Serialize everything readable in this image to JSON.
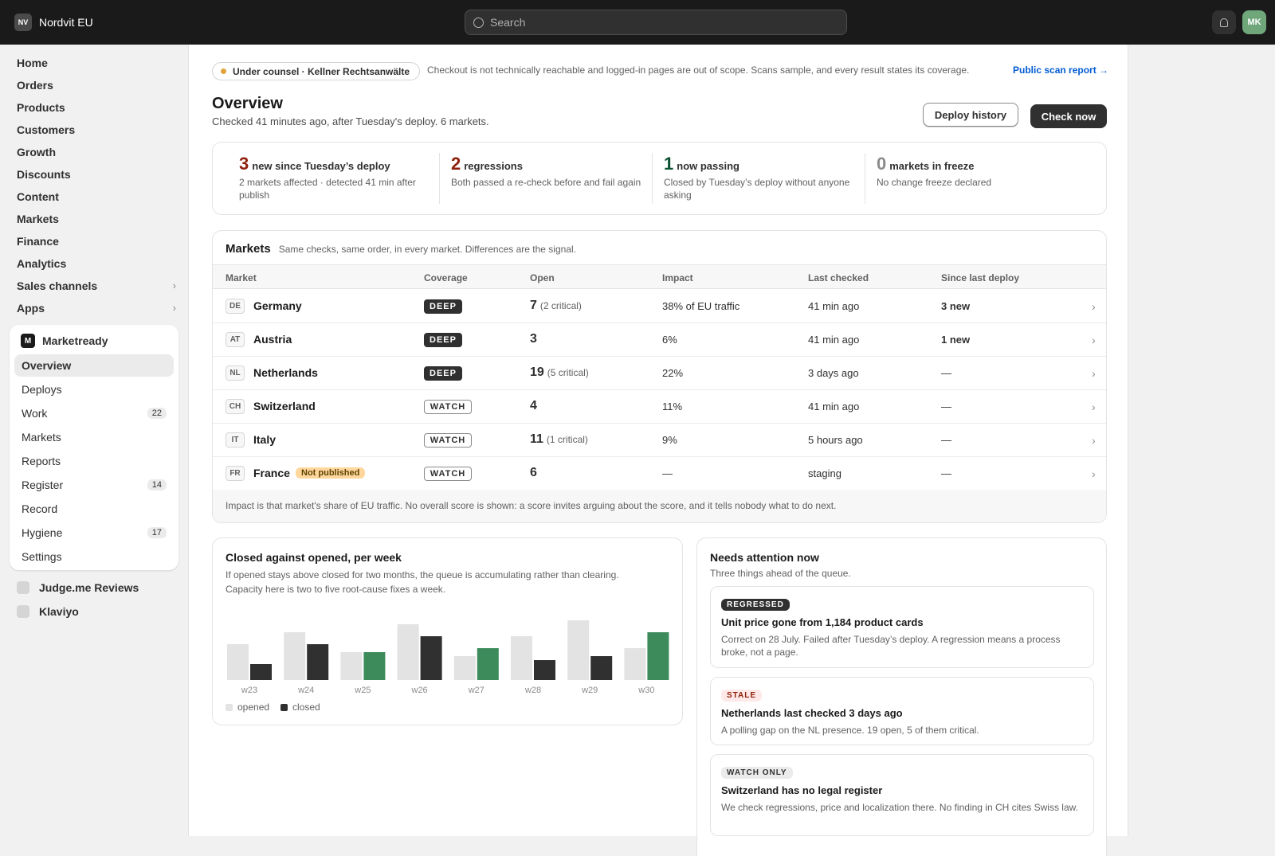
{
  "topbar": {
    "store_badge": "NV",
    "store_name": "Nordvit EU",
    "search_placeholder": "Search",
    "avatar_initials": "MK"
  },
  "sidebar": {
    "items": [
      {
        "label": "Home"
      },
      {
        "label": "Orders"
      },
      {
        "label": "Products"
      },
      {
        "label": "Customers"
      },
      {
        "label": "Growth"
      },
      {
        "label": "Discounts"
      },
      {
        "label": "Content"
      },
      {
        "label": "Markets"
      },
      {
        "label": "Finance"
      },
      {
        "label": "Analytics"
      },
      {
        "label": "Sales channels",
        "chevron": "›"
      },
      {
        "label": "Apps",
        "chevron": "›"
      }
    ],
    "app": {
      "logo": "M",
      "name": "Marketready",
      "items": [
        {
          "label": "Overview",
          "active": true
        },
        {
          "label": "Deploys"
        },
        {
          "label": "Work",
          "count": "22"
        },
        {
          "label": "Markets"
        },
        {
          "label": "Reports"
        },
        {
          "label": "Register",
          "count": "14"
        },
        {
          "label": "Record"
        },
        {
          "label": "Hygiene",
          "count": "17"
        },
        {
          "label": "Settings"
        }
      ]
    },
    "other_apps": [
      {
        "label": "Judge.me Reviews"
      },
      {
        "label": "Klaviyo"
      }
    ]
  },
  "banner": {
    "counsel": "Under counsel · Kellner Rechtsanwälte",
    "scope": "Checkout is not technically reachable and logged-in pages are out of scope. Scans sample, and every result states its coverage.",
    "report_link": "Public scan report →"
  },
  "header": {
    "title": "Overview",
    "subtitle": "Checked 41 minutes ago, after Tuesday's deploy. 6 markets.",
    "deploy_history": "Deploy history",
    "check_now": "Check now"
  },
  "stats": [
    {
      "num": "3",
      "label": "new since Tuesday’s deploy",
      "desc": "2 markets affected · detected 41 min after publish",
      "tone": "red"
    },
    {
      "num": "2",
      "label": "regressions",
      "desc": "Both passed a re-check before and fail again",
      "tone": "red"
    },
    {
      "num": "1",
      "label": "now passing",
      "desc": "Closed by Tuesday’s deploy without anyone asking",
      "tone": "green"
    },
    {
      "num": "0",
      "label": "markets in freeze",
      "desc": "No change freeze declared",
      "tone": "grey"
    }
  ],
  "markets": {
    "title": "Markets",
    "subtitle": "Same checks, same order, in every market. Differences are the signal.",
    "columns": {
      "market": "Market",
      "coverage": "Coverage",
      "open": "Open",
      "impact": "Impact",
      "last_checked": "Last checked",
      "since_deploy": "Since last deploy"
    },
    "rows": [
      {
        "code": "DE",
        "name": "Germany",
        "coverage": "DEEP",
        "open": "7",
        "open_note": "(2 critical)",
        "impact": "38% of EU traffic",
        "last_checked": "41 min ago",
        "since": "3 new",
        "open_red": true,
        "since_red": true,
        "last_red": false,
        "chev": "›"
      },
      {
        "code": "AT",
        "name": "Austria",
        "coverage": "DEEP",
        "open": "3",
        "open_note": "",
        "impact": "6%",
        "last_checked": "41 min ago",
        "since": "1 new",
        "open_red": false,
        "since_red": true,
        "last_red": false,
        "chev": "›"
      },
      {
        "code": "NL",
        "name": "Netherlands",
        "coverage": "DEEP",
        "open": "19",
        "open_note": "(5 critical)",
        "impact": "22%",
        "last_checked": "3 days ago",
        "since": "—",
        "open_red": true,
        "since_red": false,
        "last_red": true,
        "chev": "›"
      },
      {
        "code": "CH",
        "name": "Switzerland",
        "coverage": "WATCH",
        "open": "4",
        "open_note": "",
        "impact": "11%",
        "last_checked": "41 min ago",
        "since": "—",
        "open_red": false,
        "since_red": false,
        "last_red": false,
        "chev": "›"
      },
      {
        "code": "IT",
        "name": "Italy",
        "coverage": "WATCH",
        "open": "11",
        "open_note": "(1 critical)",
        "impact": "9%",
        "last_checked": "5 hours ago",
        "since": "—",
        "open_red": true,
        "since_red": false,
        "last_red": false,
        "chev": "›"
      },
      {
        "code": "FR",
        "name": "France",
        "badge": "Not published",
        "coverage": "WATCH",
        "open": "6",
        "open_note": "",
        "impact": "—",
        "last_checked": "staging",
        "since": "—",
        "open_red": false,
        "since_red": false,
        "last_red": false,
        "chev": "›"
      }
    ],
    "footnote": "Impact is that market's share of EU traffic. No overall score is shown: a score invites arguing about the score, and it tells nobody what to do next."
  },
  "chart_card": {
    "title": "Closed against opened, per week",
    "desc_line1": "If opened stays above closed for two months, the queue is accumulating rather than clearing.",
    "desc_line2": "Capacity here is two to five root-cause fixes a week."
  },
  "chart_data": {
    "type": "bar",
    "categories": [
      "w23",
      "w24",
      "w25",
      "w26",
      "w27",
      "w28",
      "w29",
      "w30"
    ],
    "series": [
      {
        "name": "opened",
        "values": [
          9,
          12,
          7,
          14,
          6,
          11,
          15,
          8
        ]
      },
      {
        "name": "closed",
        "values": [
          4,
          9,
          7,
          11,
          8,
          5,
          6,
          12
        ]
      }
    ],
    "closed_highlight": [
      false,
      false,
      true,
      false,
      true,
      false,
      false,
      true
    ],
    "colors": {
      "opened": "#e3e3e3",
      "closed": "#303030",
      "closed_exceeds": "#3d8a5b"
    },
    "ylim": [
      0,
      16
    ],
    "legend": "bottom-left"
  },
  "attention": {
    "title": "Needs attention now",
    "subtitle": "Three things ahead of the queue.",
    "items": [
      {
        "badge": "REGRESSED",
        "title": "Unit price gone from 1,184 product cards",
        "desc": "Correct on 28 July. Failed after Tuesday’s deploy. A regression means a process broke, not a page."
      },
      {
        "badge": "STALE",
        "title": "Netherlands last checked 3 days ago",
        "desc": "A polling gap on the NL presence. 19 open, 5 of them critical."
      },
      {
        "badge": "WATCH ONLY",
        "title": "Switzerland has no legal register",
        "desc": "We check regressions, price and localization there. No finding in CH cites Swiss law."
      }
    ]
  }
}
